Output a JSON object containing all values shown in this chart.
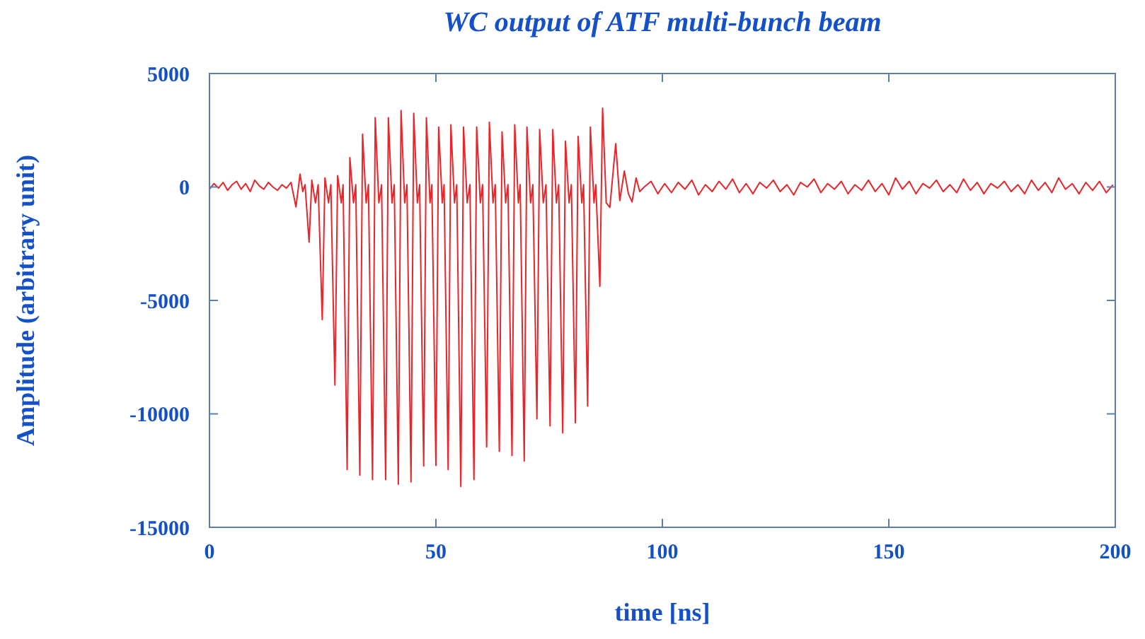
{
  "chart_data": {
    "type": "line",
    "title": "WC output of ATF multi-bunch beam",
    "xlabel": "time [ns]",
    "ylabel": "Amplitude (arbitrary unit)",
    "xlim": [
      0,
      200
    ],
    "xticks": [
      0,
      50,
      100,
      150,
      200
    ],
    "ylim": [
      -15000,
      5000
    ],
    "yticks": [
      -15000,
      -10000,
      -5000,
      0,
      5000
    ],
    "grid": false,
    "marker": "none",
    "line_style": "solid",
    "series": [
      {
        "color": "#e8262a",
        "x": [
          0,
          1,
          2,
          3,
          4,
          5,
          6,
          7,
          8,
          9,
          10,
          11,
          12,
          13,
          14,
          15,
          16,
          17,
          18,
          19.1,
          20.0,
          20.6,
          21.1,
          22.0,
          22.6,
          23.4,
          24.0,
          24.9,
          25.5,
          26.3,
          26.8,
          27.7,
          28.3,
          29.1,
          29.5,
          30.4,
          31.0,
          31.8,
          32.3,
          33.2,
          33.8,
          34.6,
          35.1,
          36.0,
          36.6,
          37.4,
          38.0,
          38.9,
          39.5,
          40.3,
          40.8,
          41.7,
          42.3,
          43.1,
          43.6,
          44.5,
          45.1,
          45.9,
          46.4,
          47.3,
          47.9,
          48.7,
          49.1,
          50.0,
          50.6,
          51.4,
          51.8,
          52.7,
          53.3,
          54.1,
          54.6,
          55.5,
          56.1,
          56.9,
          57.5,
          58.4,
          59.0,
          59.8,
          60.3,
          61.2,
          61.8,
          62.6,
          63.1,
          64.0,
          64.6,
          65.4,
          65.9,
          66.8,
          67.4,
          68.2,
          68.6,
          69.5,
          70.1,
          70.9,
          71.4,
          72.3,
          72.9,
          73.7,
          74.3,
          75.2,
          75.8,
          76.6,
          77.1,
          78.0,
          78.6,
          79.4,
          79.9,
          80.8,
          81.4,
          82.2,
          82.6,
          83.5,
          84.1,
          84.9,
          85.3,
          86.2,
          86.8,
          87.6,
          88.4,
          89.7,
          90.6,
          91.6,
          92.5,
          93.3,
          94.2,
          95.0,
          96,
          97.5,
          99,
          100.5,
          102,
          103.5,
          105,
          106.5,
          108,
          109.5,
          111,
          112.5,
          114,
          115.5,
          117,
          118.5,
          120,
          121.5,
          123,
          124.5,
          126,
          127.5,
          129,
          130.5,
          132,
          133.5,
          135,
          136.5,
          138,
          139.5,
          141,
          142.5,
          144,
          145.5,
          147,
          148.5,
          150,
          151.5,
          153,
          154.5,
          156,
          157.5,
          159,
          160.5,
          162,
          163.5,
          165,
          166.5,
          168,
          169.5,
          171,
          172.5,
          174,
          175.5,
          177,
          178.5,
          180,
          181.5,
          183,
          184.5,
          186,
          187.5,
          189,
          190.5,
          192,
          193.5,
          195,
          196.5,
          198,
          199.5
        ],
        "values": [
          -100,
          150,
          -50,
          200,
          -150,
          100,
          250,
          -100,
          150,
          -200,
          300,
          50,
          -100,
          200,
          0,
          -150,
          100,
          -50,
          200,
          -880,
          570,
          -200,
          100,
          -2430,
          300,
          -700,
          100,
          -5850,
          400,
          -700,
          100,
          -8730,
          500,
          -700,
          100,
          -12450,
          1290,
          -700,
          100,
          -12700,
          2330,
          -700,
          100,
          -12900,
          3050,
          -700,
          100,
          -12900,
          3050,
          -700,
          100,
          -13100,
          3370,
          -700,
          100,
          -13000,
          3250,
          -700,
          100,
          -12300,
          3050,
          -700,
          100,
          -12270,
          2640,
          -700,
          100,
          -12450,
          2740,
          -700,
          100,
          -13200,
          2640,
          -700,
          100,
          -12900,
          2640,
          -700,
          100,
          -11460,
          2850,
          -700,
          100,
          -11650,
          2430,
          -700,
          100,
          -11840,
          2740,
          -700,
          100,
          -12080,
          2640,
          -700,
          100,
          -10220,
          2530,
          -700,
          100,
          -10530,
          2530,
          -700,
          100,
          -10840,
          2020,
          -700,
          100,
          -10400,
          2230,
          -700,
          100,
          -9660,
          2640,
          -700,
          100,
          -4380,
          3470,
          -700,
          -900,
          1910,
          -600,
          700,
          -300,
          -660,
          400,
          -200,
          0,
          250,
          -300,
          150,
          -250,
          200,
          -100,
          300,
          -350,
          100,
          -200,
          250,
          -100,
          350,
          -250,
          150,
          -300,
          200,
          -50,
          300,
          -200,
          100,
          -350,
          200,
          0,
          350,
          -250,
          150,
          -100,
          250,
          -300,
          100,
          -150,
          300,
          -200,
          150,
          -350,
          400,
          -100,
          250,
          -300,
          150,
          -50,
          300,
          -200,
          100,
          -250,
          350,
          -150,
          200,
          -300,
          150,
          -50,
          250,
          -200,
          100,
          -300,
          300,
          -150,
          200,
          -250,
          400,
          -100,
          150,
          -300,
          200,
          -150,
          250,
          -250,
          100
        ]
      }
    ]
  }
}
